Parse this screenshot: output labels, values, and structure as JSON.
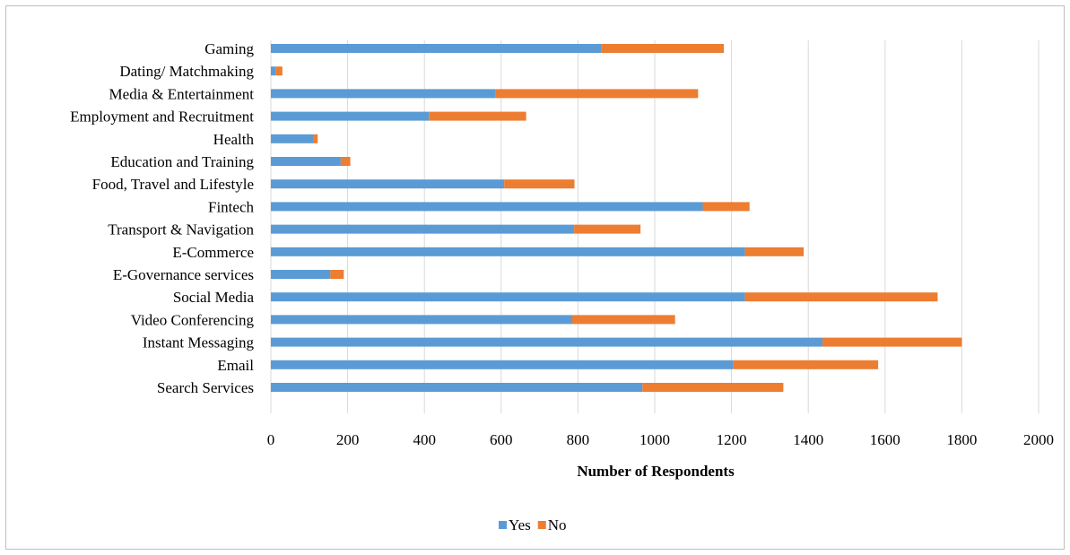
{
  "chart_data": {
    "type": "bar",
    "orientation": "horizontal",
    "stacked": true,
    "categories": [
      "Gaming",
      "Dating/ Matchmaking",
      "Media & Entertainment",
      "Employment and Recruitment",
      "Health",
      "Education and Training",
      "Food, Travel and Lifestyle",
      "Fintech",
      "Transport & Navigation",
      "E-Commerce",
      "E-Governance services",
      "Social Media",
      "Video Conferencing",
      "Instant Messaging",
      "Email",
      "Search Services"
    ],
    "series": [
      {
        "name": "Yes",
        "color": "#5b9bd5",
        "values": [
          860,
          12,
          585,
          412,
          112,
          182,
          608,
          1125,
          790,
          1235,
          155,
          1235,
          785,
          1437,
          1205,
          968
        ]
      },
      {
        "name": "No",
        "color": "#ed7d31",
        "values": [
          320,
          18,
          528,
          253,
          10,
          25,
          183,
          122,
          173,
          153,
          35,
          502,
          268,
          363,
          377,
          367
        ]
      }
    ],
    "x_ticks": [
      "0",
      "200",
      "400",
      "600",
      "800",
      "1000",
      "1200",
      "1400",
      "1600",
      "1800",
      "2000"
    ],
    "xlim": [
      0,
      2000
    ],
    "xlabel": "Number of Respondents",
    "ylabel": "",
    "title": "",
    "grid": "vertical",
    "legend_position": "bottom"
  }
}
